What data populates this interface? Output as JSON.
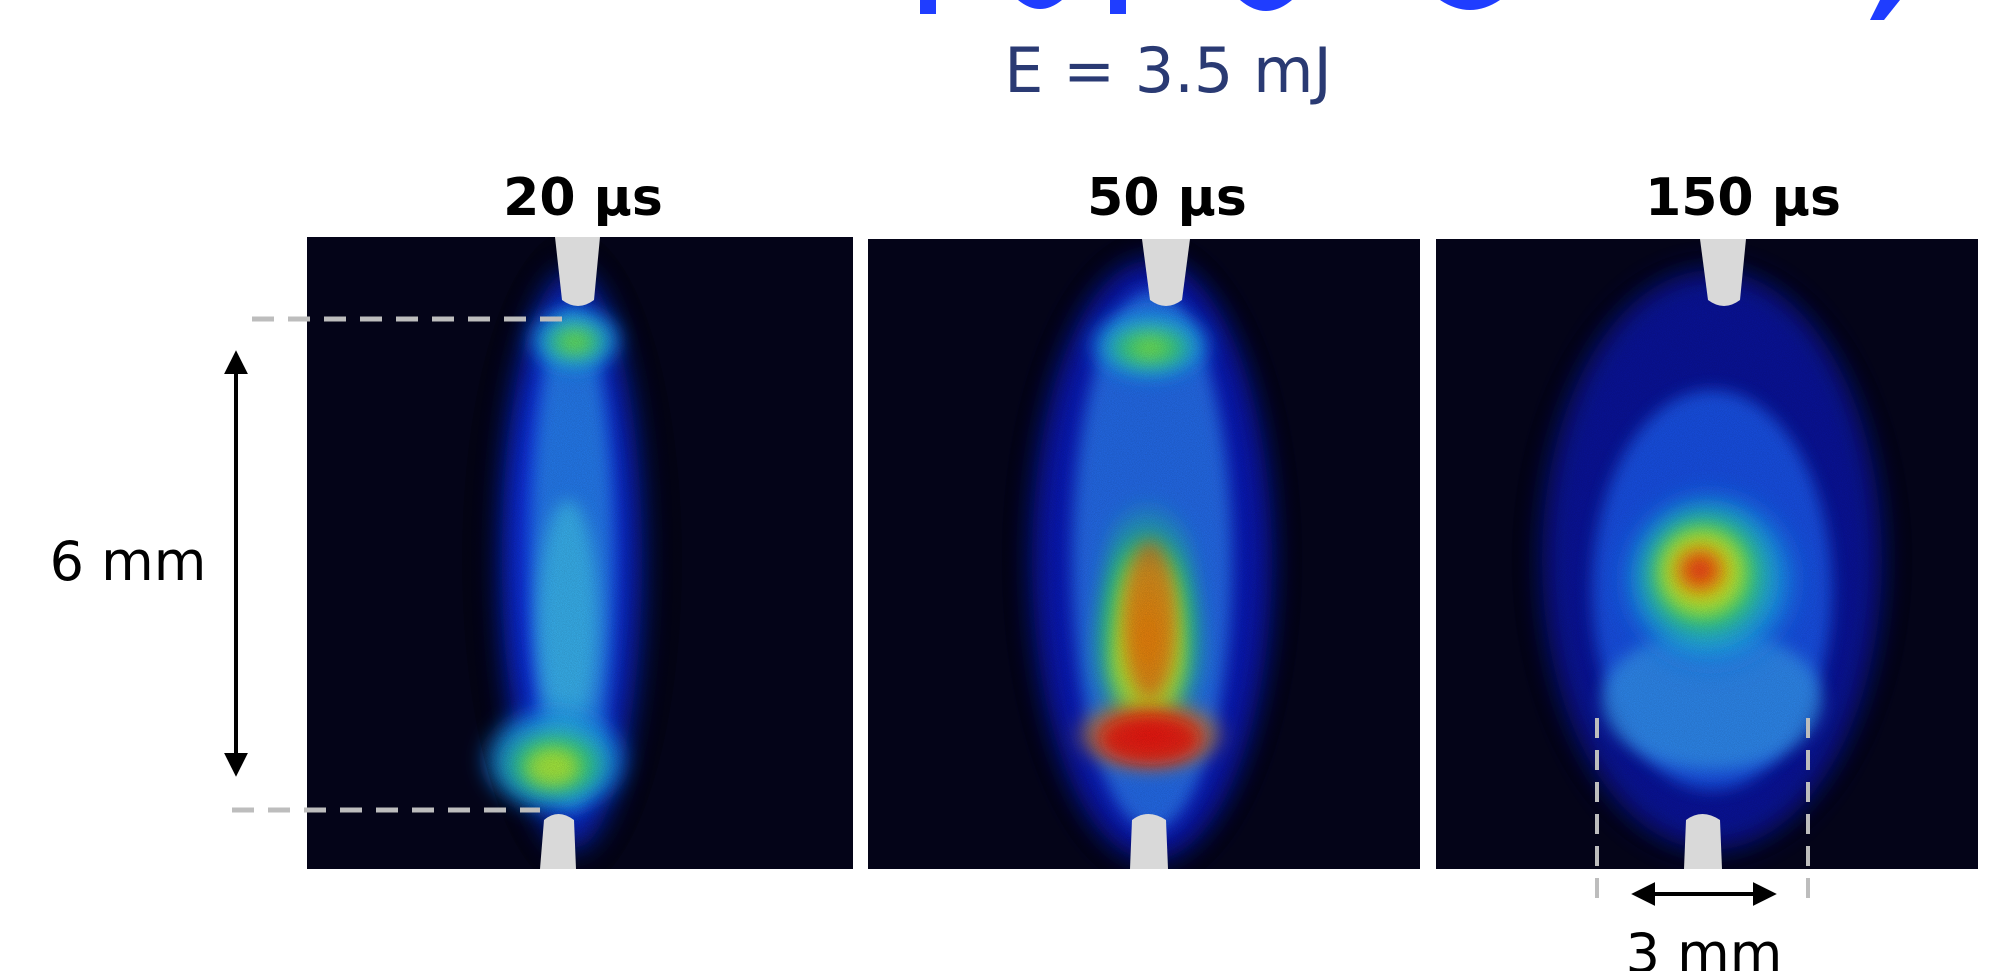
{
  "slide": {
    "partial_title": "",
    "energy_label": "E = 3.5 mJ"
  },
  "panels": [
    {
      "time_label": "20 µs"
    },
    {
      "time_label": "50 µs"
    },
    {
      "time_label": "150 µs"
    }
  ],
  "annotations": {
    "height_label": "6 mm",
    "width_label": "3 mm"
  },
  "colors": {
    "background": "#ffffff",
    "panel_bg": "#040418",
    "title_blue": "#1f3dff",
    "energy_text": "#2a3a73",
    "electrode": "#d9d9d9",
    "dash": "#bdbdbd"
  }
}
